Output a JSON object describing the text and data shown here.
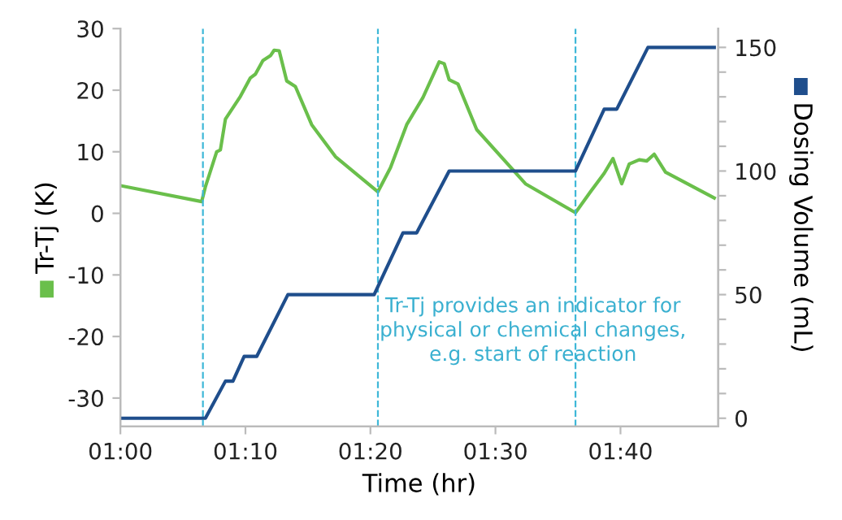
{
  "chart_data": {
    "type": "line",
    "xlabel": "Time (hr)",
    "ylabel": "Tr-Tj (K)",
    "y2label": "Dosing Volume (mL)",
    "x": [
      1.0,
      1.1083,
      1.1133,
      1.1283,
      1.1333,
      1.14,
      1.16,
      1.1733,
      1.18,
      1.19,
      1.2,
      1.205,
      1.2117,
      1.2217,
      1.2333,
      1.255,
      1.2867,
      1.3433,
      1.36,
      1.3817,
      1.4033,
      1.425,
      1.4317,
      1.4383,
      1.45,
      1.475,
      1.54,
      1.6067,
      1.6267,
      1.645,
      1.6567,
      1.6683,
      1.6783,
      1.6917,
      1.7017,
      1.7117,
      1.7267,
      1.7917
    ],
    "series": [
      {
        "color": "#6abf4b",
        "values": [
          4.5,
          1.9,
          4.3,
          10,
          10.3,
          15.3,
          19,
          22,
          22.6,
          24.8,
          25.6,
          26.5,
          26.4,
          21.5,
          20.6,
          14.4,
          9.2,
          3.5,
          7.4,
          14.4,
          18.8,
          24.6,
          24.3,
          21.7,
          21.0,
          13.6,
          4.8,
          0.1,
          3.5,
          6.5,
          8.9,
          4.8,
          8.0,
          8.7,
          8.5,
          9.6,
          6.7,
          2.5
        ]
      },
      {
        "color": "#1f4e8c",
        "axis": "y2",
        "x": [
          1.0,
          1.1133,
          1.14,
          1.15,
          1.165,
          1.1817,
          1.2233,
          1.3383,
          1.3767,
          1.395,
          1.4383,
          1.6067,
          1.645,
          1.6617,
          1.7033,
          1.7917
        ],
        "values": [
          0,
          0,
          15,
          15,
          25,
          25,
          50,
          50,
          75,
          75,
          100,
          100,
          125,
          125,
          150,
          150
        ]
      }
    ],
    "xlim": [
      1.0,
      1.797
    ],
    "xticks": [
      {
        "value": 1.0,
        "label": "01:00"
      },
      {
        "value": 1.1667,
        "label": "01:10"
      },
      {
        "value": 1.3333,
        "label": "01:20"
      },
      {
        "value": 1.5,
        "label": "01:30"
      },
      {
        "value": 1.6667,
        "label": "01:40"
      }
    ],
    "ylim": [
      -34.6,
      30
    ],
    "yticks": [
      -30,
      -20,
      -10,
      0,
      10,
      20,
      30
    ],
    "y2lim": [
      -3.3,
      157.6
    ],
    "y2ticks": [
      0,
      {
        "value": 10,
        "label": null
      },
      {
        "value": 20,
        "label": null
      },
      {
        "value": 30,
        "label": null
      },
      {
        "value": 40,
        "label": null
      },
      50,
      {
        "value": 60,
        "label": null
      },
      {
        "value": 70,
        "label": null
      },
      {
        "value": 80,
        "label": null
      },
      {
        "value": 90,
        "label": null
      },
      100,
      {
        "value": 110,
        "label": null
      },
      {
        "value": 120,
        "label": null
      },
      {
        "value": 130,
        "label": null
      },
      {
        "value": 140,
        "label": null
      },
      150
    ],
    "ref_lines": [
      {
        "axis": "x",
        "value": 1.11,
        "color": "#3fb8d8",
        "line_style": "dashed"
      },
      {
        "axis": "x",
        "value": 1.3433,
        "color": "#3fb8d8",
        "line_style": "dashed"
      },
      {
        "axis": "x",
        "value": 1.6067,
        "color": "#3fb8d8",
        "line_style": "dashed"
      }
    ],
    "annotations": [
      "Tr-Tj provides an indicator for\nphysical or chemical changes,\ne.g. start of reaction"
    ],
    "grid": false,
    "legend": false,
    "marker": "none",
    "line_style": "solid"
  }
}
